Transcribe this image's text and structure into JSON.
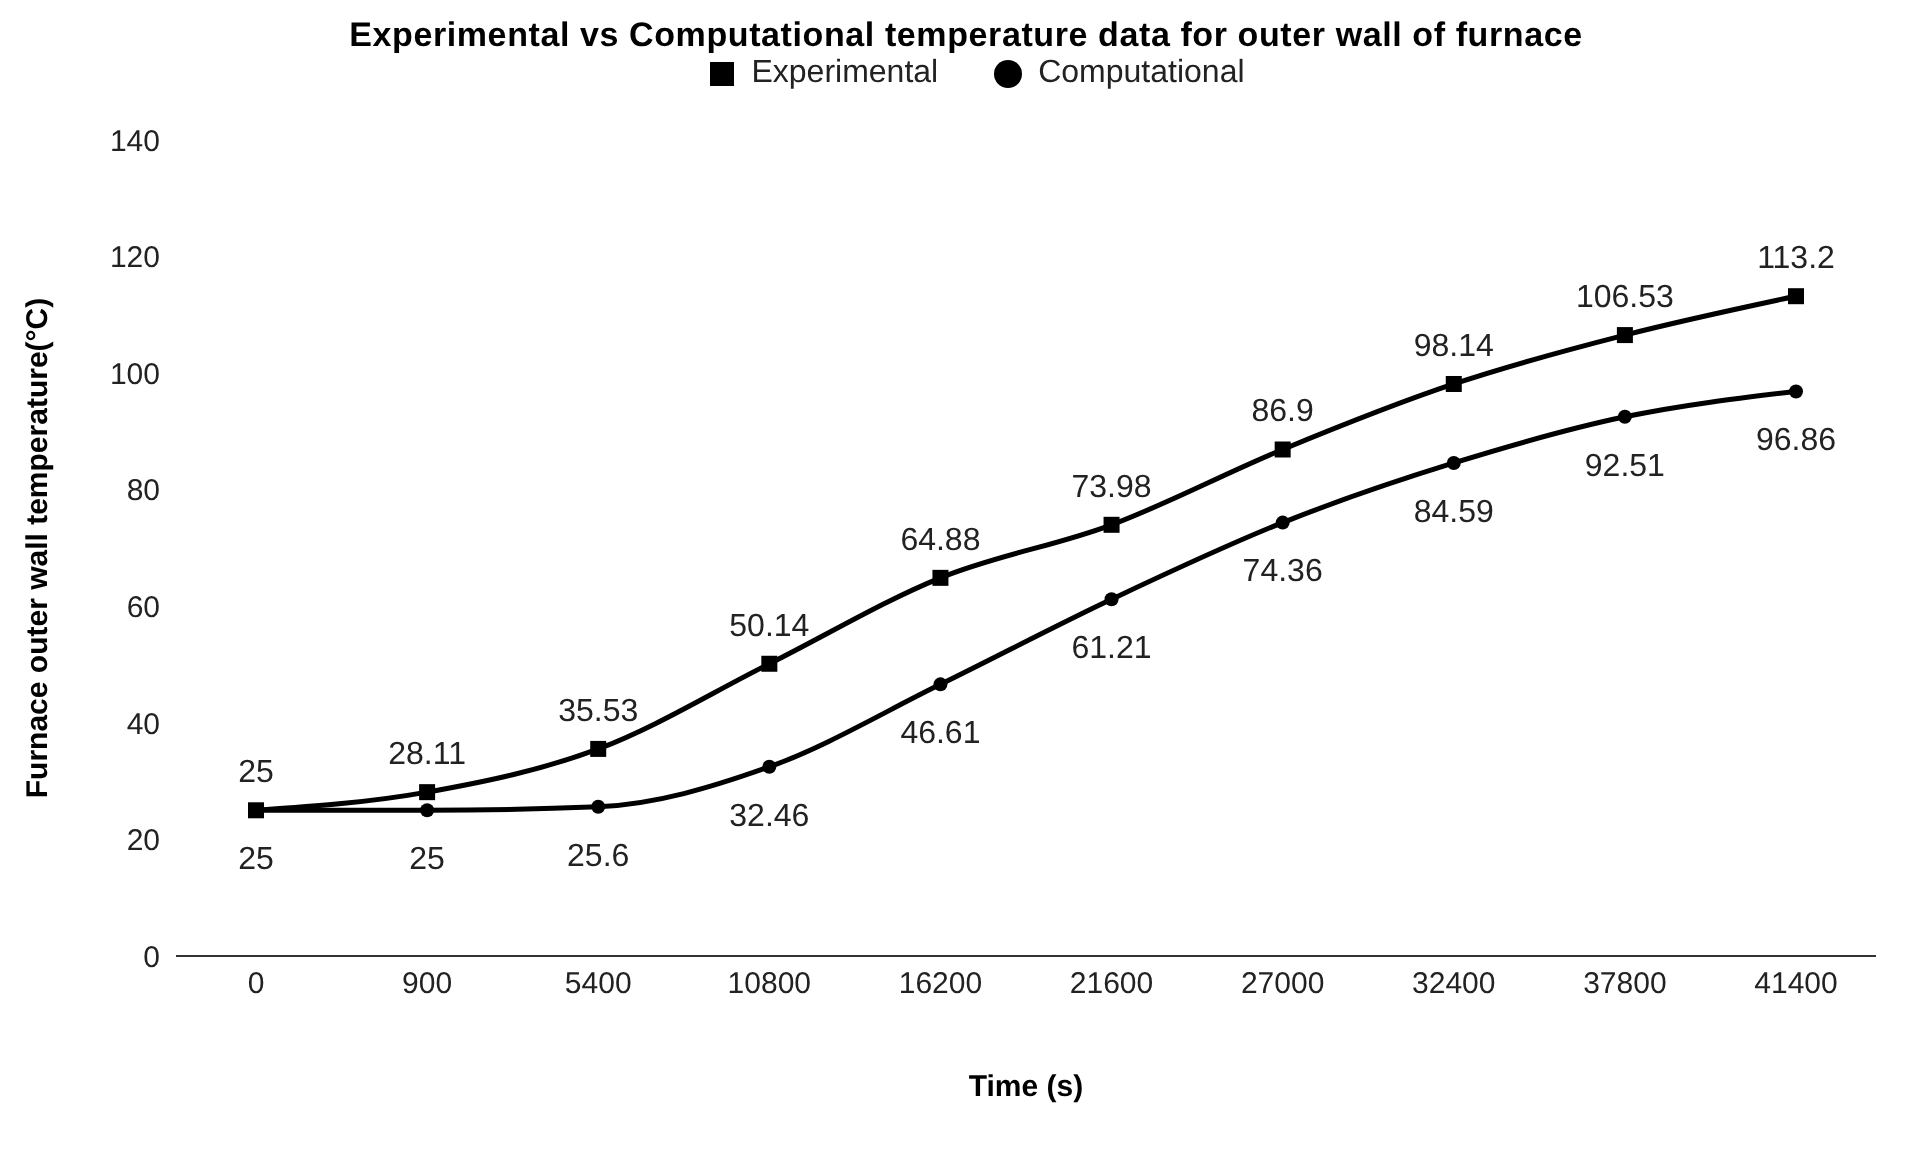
{
  "chart_data": {
    "type": "line",
    "title": "Experimental vs Computational temperature data for outer wall of furnace",
    "xlabel": "Time (s)",
    "ylabel": "Furnace outer wall temperature(°C)",
    "categories": [
      "0",
      "900",
      "5400",
      "10800",
      "16200",
      "21600",
      "27000",
      "32400",
      "37800",
      "41400"
    ],
    "series": [
      {
        "name": "Experimental",
        "color": "#000000",
        "marker": "square",
        "values": [
          25,
          28.11,
          35.53,
          50.14,
          64.88,
          73.98,
          86.9,
          98.14,
          106.53,
          113.2
        ]
      },
      {
        "name": "Computational",
        "color": "#000000",
        "marker": "circle",
        "values": [
          25,
          25,
          25.6,
          32.46,
          46.61,
          61.21,
          74.36,
          84.59,
          92.51,
          96.86
        ]
      }
    ],
    "ylim": [
      0,
      140
    ],
    "yticks": [
      0,
      20,
      40,
      60,
      80,
      100,
      120,
      140
    ],
    "legend": "top",
    "data_labels": true,
    "line_style": "solid"
  }
}
